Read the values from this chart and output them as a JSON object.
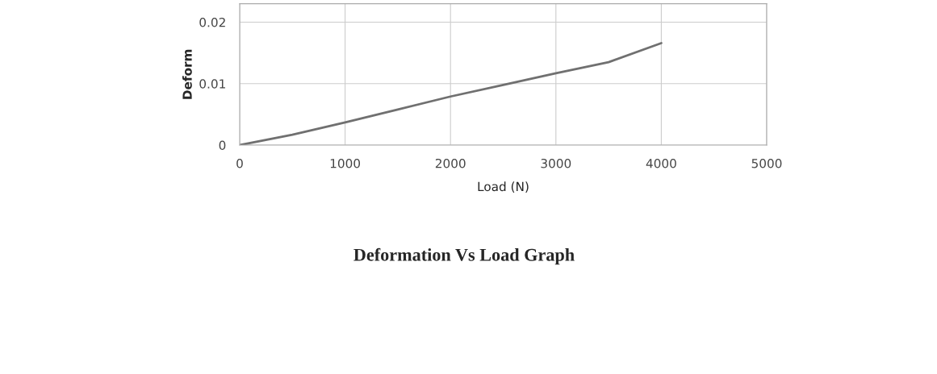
{
  "chart_data": {
    "type": "line",
    "title": "Deformation Vs Load Graph",
    "xlabel": "Load (N)",
    "ylabel": "Deform",
    "x": [
      0,
      500,
      1000,
      1500,
      2000,
      2500,
      3000,
      3500,
      4000
    ],
    "series": [
      {
        "color": "#707070",
        "values": [
          0,
          0.0017,
          0.0037,
          0.0058,
          0.0079,
          0.0098,
          0.0117,
          0.0135,
          0.0166
        ]
      }
    ],
    "xlim": [
      0,
      5000
    ],
    "xticks": [
      0,
      1000,
      2000,
      3000,
      4000,
      5000
    ],
    "ylim": [
      0,
      0.023
    ],
    "yticks": [
      0,
      {
        "value": 0.01,
        "label": "0.01"
      },
      {
        "value": 0.02,
        "label": "0.02"
      }
    ],
    "grid": true,
    "marker": "none",
    "line_style": "solid"
  }
}
